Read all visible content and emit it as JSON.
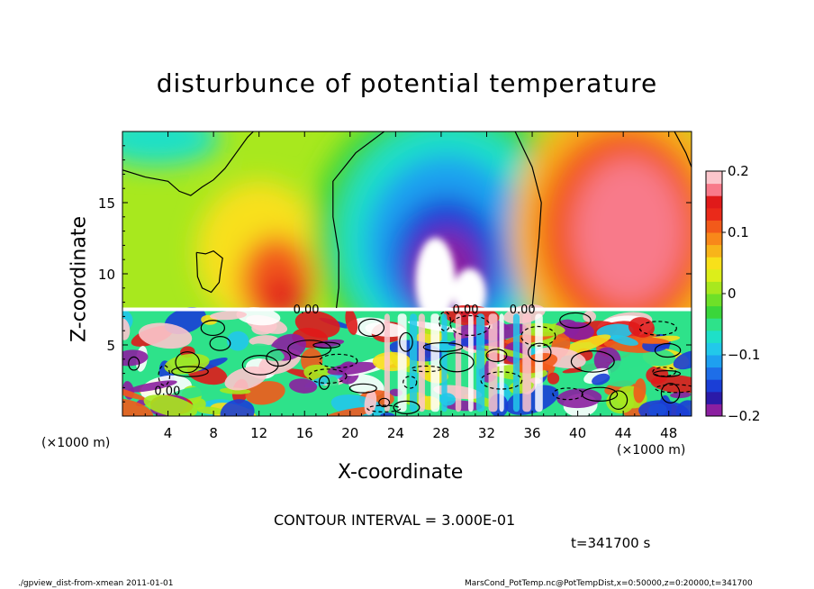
{
  "chart_data": {
    "type": "heatmap",
    "title": "disturbunce of potential temperature",
    "xlabel": "X-coordinate",
    "ylabel": "Z-coordinate",
    "x_unit_left": "(×1000 m)",
    "x_unit_right": "(×1000 m)",
    "xlim": [
      0,
      50
    ],
    "ylim": [
      0,
      20
    ],
    "x_ticks": [
      "4",
      "8",
      "12",
      "16",
      "20",
      "24",
      "28",
      "32",
      "36",
      "40",
      "44",
      "48"
    ],
    "x_tick_values": [
      4,
      8,
      12,
      16,
      20,
      24,
      28,
      32,
      36,
      40,
      44,
      48
    ],
    "y_ticks": [
      "5",
      "10",
      "15"
    ],
    "y_tick_values": [
      5,
      10,
      15
    ],
    "colorbar": {
      "range": [
        -0.2,
        0.2
      ],
      "tick_labels": [
        "0.2",
        "0.1",
        "0",
        "−0.1",
        "−0.2"
      ],
      "tick_values": [
        0.2,
        0.1,
        0,
        -0.1,
        -0.2
      ],
      "colors": [
        "#8b1fa0",
        "#2b1aa8",
        "#1a3ed6",
        "#1e6ee8",
        "#1ea0f0",
        "#22c8ea",
        "#1ee0c8",
        "#2ee28a",
        "#3ad63a",
        "#6ee028",
        "#a8e81e",
        "#dcee1a",
        "#f8e01a",
        "#f8b41a",
        "#f8881a",
        "#f25a1a",
        "#ea2a1a",
        "#e01a1a",
        "#f87a8a",
        "#fcc6cc"
      ]
    },
    "contour_label": "0.00",
    "field_regions": [
      {
        "name": "upper-left low",
        "x": [
          0,
          10
        ],
        "z": [
          16,
          20
        ],
        "value": -0.05
      },
      {
        "name": "left warm lobe",
        "x": [
          8,
          18
        ],
        "z": [
          7.5,
          15
        ],
        "value": 0.1
      },
      {
        "name": "center cold dome",
        "x": [
          20,
          37
        ],
        "z": [
          7.5,
          20
        ],
        "value": -0.18
      },
      {
        "name": "right warm lobe",
        "x": [
          37,
          50
        ],
        "z": [
          7.5,
          19
        ],
        "value": 0.15
      }
    ],
    "contour_interval_text": "CONTOUR INTERVAL = 3.000E-01",
    "time_text": "t=341700 s"
  },
  "footer": {
    "left": "./gpview_dist-from-xmean  2011-01-01",
    "right": "MarsCond_PotTemp.nc@PotTempDist,x=0:50000,z=0:20000,t=341700"
  }
}
